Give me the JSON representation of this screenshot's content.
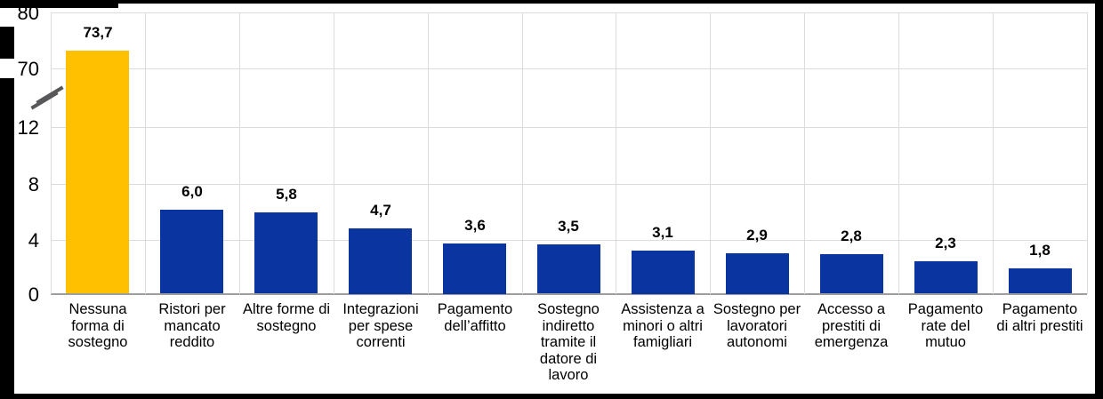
{
  "chart_data": {
    "type": "bar",
    "title": "",
    "xlabel": "",
    "ylabel": "",
    "legend": false,
    "grid": true,
    "categories": [
      "Nessuna forma di sostegno",
      "Ristori per mancato reddito",
      "Altre forme di sostegno",
      "Integrazioni per spese correnti",
      "Pagamento dell’affitto",
      "Sostegno indiretto tramite il datore di lavoro",
      "Assistenza a minori o altri famigliari",
      "Sostegno per lavoratori autonomi",
      "Accesso a prestiti di emergenza",
      "Pagamento rate del mutuo",
      "Pagamento di altri prestiti"
    ],
    "category_lines": [
      [
        "Nessuna",
        "forma di",
        "sostegno"
      ],
      [
        "Ristori per",
        "mancato",
        "reddito"
      ],
      [
        "Altre forme di",
        "sostegno"
      ],
      [
        "Integrazioni",
        "per spese",
        "correnti"
      ],
      [
        "Pagamento",
        "dell’affitto"
      ],
      [
        "Sostegno",
        "indiretto",
        "tramite il",
        "datore di",
        "lavoro"
      ],
      [
        "Assistenza a",
        "minori o altri",
        "famigliari"
      ],
      [
        "Sostegno per",
        "lavoratori",
        "autonomi"
      ],
      [
        "Accesso a",
        "prestiti di",
        "emergenza"
      ],
      [
        "Pagamento",
        "rate del",
        "mutuo"
      ],
      [
        "Pagamento",
        "di altri prestiti"
      ]
    ],
    "values": [
      73.7,
      6.0,
      5.8,
      4.7,
      3.6,
      3.5,
      3.1,
      2.9,
      2.8,
      2.3,
      1.8
    ],
    "value_labels": [
      "73,7",
      "6,0",
      "5,8",
      "4,7",
      "3,6",
      "3,5",
      "3,1",
      "2,9",
      "2,8",
      "2,3",
      "1,8"
    ],
    "highlight_index": 0,
    "colors": {
      "highlight": "#FFC000",
      "default": "#0A35A0"
    },
    "y_axis": {
      "tick_labels": [
        "80",
        "70",
        "12",
        "8",
        "4",
        "0"
      ],
      "broken_axis": true,
      "lower_range": [
        0,
        12
      ],
      "upper_range": [
        70,
        80
      ]
    }
  },
  "frame": {
    "background": "#000000",
    "chart_background": "#FFFFFF",
    "gridline_color": "#DCDCDC",
    "axis_color": "#9E9E9E",
    "break_mark_color": "#58585A"
  }
}
